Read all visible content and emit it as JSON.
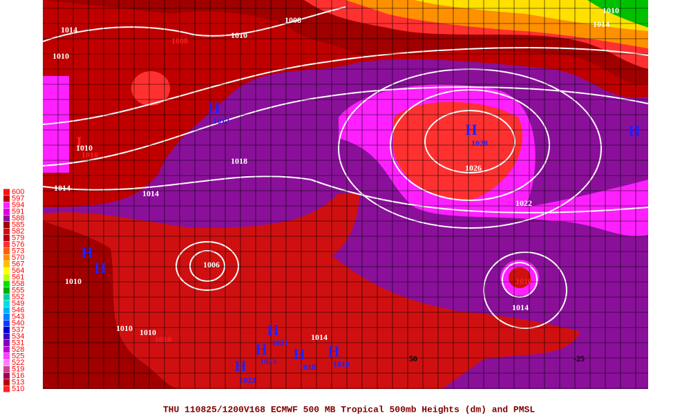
{
  "caption": "THU 110825/1200V168  ECMWF  500 MB Tropical 500mb Heights (dm) and PMSL",
  "legend": [
    {
      "label": "600",
      "color": "#ff1010"
    },
    {
      "label": "597",
      "color": "#c00000"
    },
    {
      "label": "594",
      "color": "#ff20ff"
    },
    {
      "label": "591",
      "color": "#e000e0"
    },
    {
      "label": "588",
      "color": "#8a109a"
    },
    {
      "label": "585",
      "color": "#a00000"
    },
    {
      "label": "582",
      "color": "#d01010"
    },
    {
      "label": "579",
      "color": "#b80010"
    },
    {
      "label": "576",
      "color": "#ff3030"
    },
    {
      "label": "573",
      "color": "#ff6000"
    },
    {
      "label": "570",
      "color": "#ff9000"
    },
    {
      "label": "567",
      "color": "#ffc000"
    },
    {
      "label": "564",
      "color": "#ffff00"
    },
    {
      "label": "561",
      "color": "#c0ff00"
    },
    {
      "label": "558",
      "color": "#00e000"
    },
    {
      "label": "555",
      "color": "#00b000"
    },
    {
      "label": "552",
      "color": "#00d0a0"
    },
    {
      "label": "549",
      "color": "#00e0e0"
    },
    {
      "label": "546",
      "color": "#00b0ff"
    },
    {
      "label": "543",
      "color": "#0080ff"
    },
    {
      "label": "540",
      "color": "#0040ff"
    },
    {
      "label": "537",
      "color": "#0000d0"
    },
    {
      "label": "534",
      "color": "#4000c0"
    },
    {
      "label": "531",
      "color": "#8000c0"
    },
    {
      "label": "528",
      "color": "#c000e0"
    },
    {
      "label": "525",
      "color": "#ff40ff"
    },
    {
      "label": "522",
      "color": "#ff80ff"
    },
    {
      "label": "519",
      "color": "#d04090"
    },
    {
      "label": "516",
      "color": "#a00050"
    },
    {
      "label": "513",
      "color": "#c00000"
    },
    {
      "label": "510",
      "color": "#ff2020"
    }
  ],
  "map_labels": [
    {
      "text": "1014",
      "color": "#ffffff"
    },
    {
      "text": "1010",
      "color": "#ffffff"
    },
    {
      "text": "1008",
      "color": "#ffffff"
    },
    {
      "text": "1010",
      "color": "#ffffff"
    },
    {
      "text": "1014",
      "color": "#ffffff"
    },
    {
      "text": "1010",
      "color": "#ffffff"
    },
    {
      "text": "1008",
      "color": "#ff2020"
    },
    {
      "text": "H",
      "color": "#2020ff"
    },
    {
      "text": "1012",
      "color": "#2020ff"
    },
    {
      "text": "H",
      "color": "#2020ff"
    },
    {
      "text": "1028",
      "color": "#2020ff"
    },
    {
      "text": "1026",
      "color": "#ffffff"
    },
    {
      "text": "H",
      "color": "#2020ff"
    },
    {
      "text": "1018",
      "color": "#ffffff"
    },
    {
      "text": "1014",
      "color": "#ffffff"
    },
    {
      "text": "1022",
      "color": "#ffffff"
    },
    {
      "text": "L",
      "color": "#ff2020"
    },
    {
      "text": "1010",
      "color": "#ffffff"
    },
    {
      "text": "1010",
      "color": "#ff2020"
    },
    {
      "text": "1014",
      "color": "#ffffff"
    },
    {
      "text": "1006",
      "color": "#ffffff"
    },
    {
      "text": "1010",
      "color": "#ff2020"
    },
    {
      "text": "1014",
      "color": "#ffffff"
    },
    {
      "text": "H",
      "color": "#2020ff"
    },
    {
      "text": "1010",
      "color": "#ffffff"
    },
    {
      "text": "H",
      "color": "#2020ff"
    },
    {
      "text": "1010",
      "color": "#ffffff"
    },
    {
      "text": "1010",
      "color": "#ffffff"
    },
    {
      "text": "1010",
      "color": "#ff2020"
    },
    {
      "text": "H",
      "color": "#2020ff"
    },
    {
      "text": "1021",
      "color": "#2020ff"
    },
    {
      "text": "H",
      "color": "#2020ff"
    },
    {
      "text": "1023",
      "color": "#2020ff"
    },
    {
      "text": "H",
      "color": "#2020ff"
    },
    {
      "text": "1023",
      "color": "#2020ff"
    },
    {
      "text": "H",
      "color": "#2020ff"
    },
    {
      "text": "1018",
      "color": "#2020ff"
    },
    {
      "text": "H",
      "color": "#2020ff"
    },
    {
      "text": "1019",
      "color": "#2020ff"
    },
    {
      "text": "1014",
      "color": "#ffffff"
    },
    {
      "text": "50",
      "color": "#000000"
    },
    {
      "text": "-25",
      "color": "#000000"
    }
  ]
}
